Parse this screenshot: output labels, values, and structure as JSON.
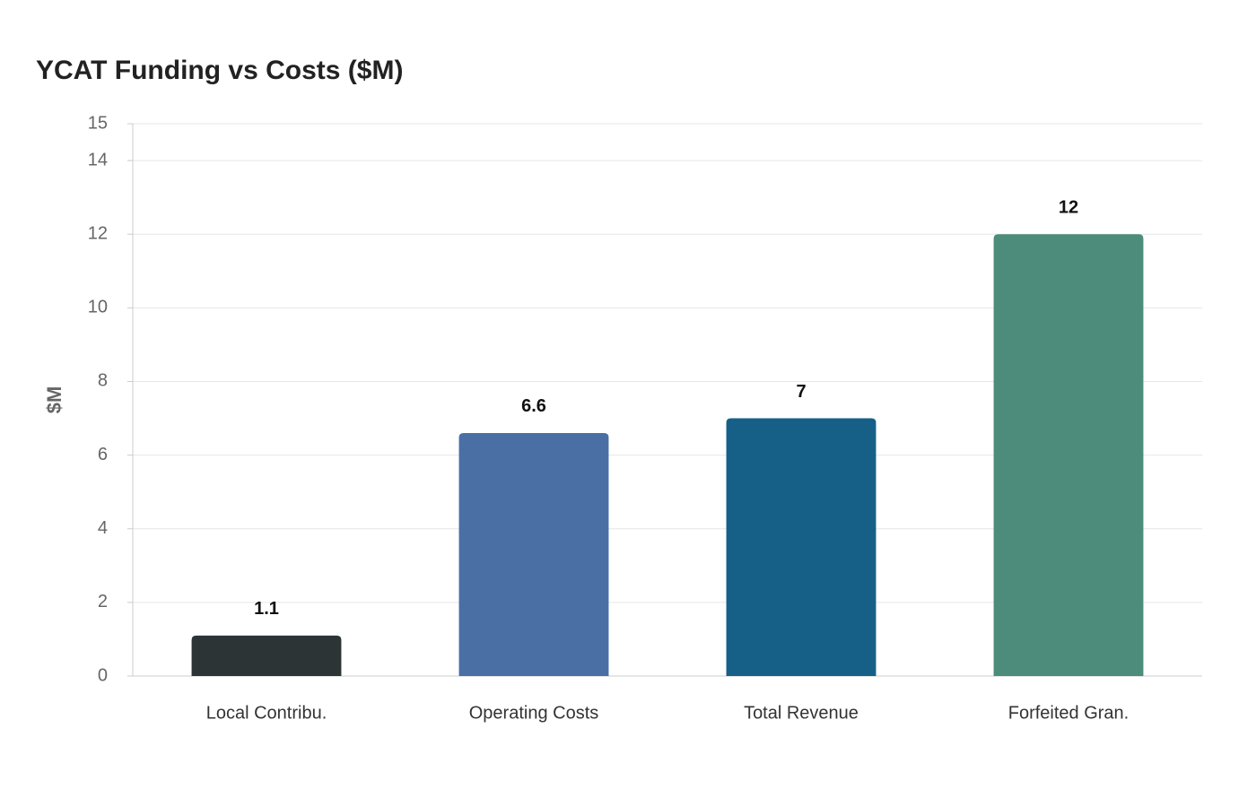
{
  "chart_data": {
    "type": "bar",
    "title": "YCAT Funding vs Costs ($M)",
    "y_label": "$M",
    "categories": [
      "Local Contribu.",
      "Operating Costs",
      "Total Revenue",
      "Forfeited Gran."
    ],
    "values": [
      1.1,
      6.6,
      7,
      12
    ],
    "colors": [
      "#2d3436",
      "#4a6fa5",
      "#166088",
      "#4d8b7a"
    ],
    "ylim": [
      0,
      15
    ],
    "yticks": [
      0,
      2,
      4,
      6,
      8,
      10,
      12,
      14,
      15
    ],
    "grid": true
  }
}
